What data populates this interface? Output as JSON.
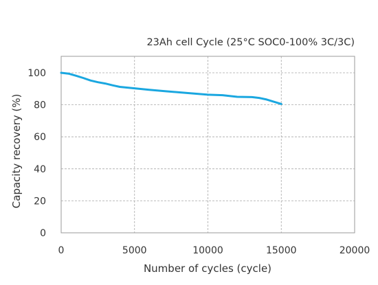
{
  "chart_data": {
    "type": "line",
    "title": "23Ah cell Cycle (25°C SOC0-100% 3C/3C)",
    "xlabel": "Number of cycles (cycle)",
    "ylabel": "Capacity recovery (%)",
    "xlim": [
      0,
      20000
    ],
    "ylim": [
      0,
      110
    ],
    "xticks": [
      0,
      5000,
      10000,
      15000,
      20000
    ],
    "yticks": [
      0,
      20,
      40,
      60,
      80,
      100
    ],
    "xtick_labels": [
      "0",
      "5000",
      "10000",
      "15000",
      "20000"
    ],
    "ytick_labels": [
      "0",
      "20",
      "40",
      "60",
      "80",
      "100"
    ],
    "grid": true,
    "series": [
      {
        "color": "#1aa7e0",
        "x": [
          0,
          500,
          1000,
          1500,
          2000,
          2500,
          3000,
          3500,
          4000,
          5000,
          6000,
          7000,
          8000,
          9000,
          10000,
          11000,
          12000,
          13000,
          13500,
          14000,
          14500,
          15000
        ],
        "y": [
          100,
          99.5,
          98.2,
          96.8,
          95.2,
          94.1,
          93.3,
          92.2,
          91.2,
          90.3,
          89.4,
          88.6,
          87.8,
          87.1,
          86.3,
          86.0,
          85.0,
          84.8,
          84.3,
          83.3,
          81.9,
          80.5
        ]
      }
    ]
  }
}
